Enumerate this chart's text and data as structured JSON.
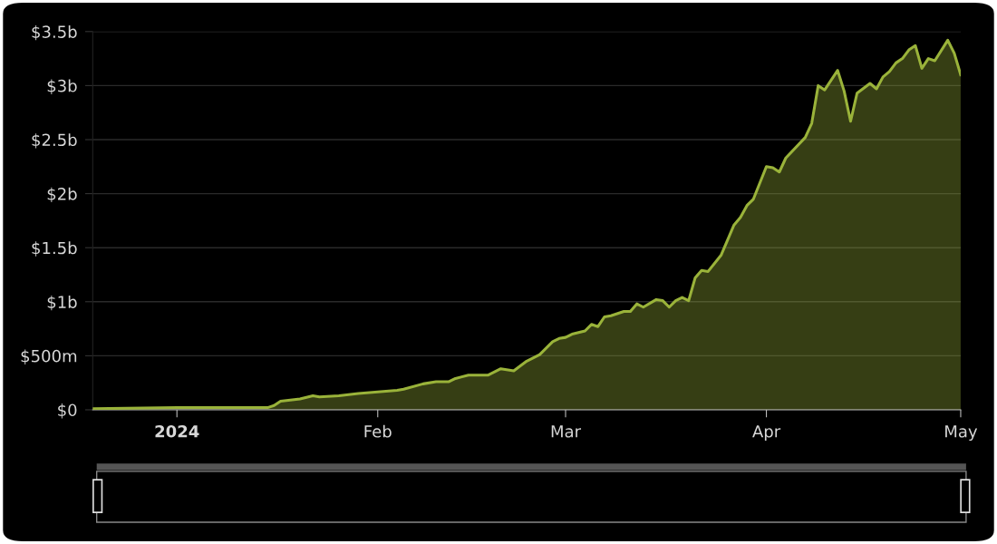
{
  "chart_data": {
    "type": "area",
    "x": [
      "2023-12-19",
      "2024-01-01",
      "2024-01-15",
      "2024-01-16",
      "2024-01-17",
      "2024-01-20",
      "2024-01-22",
      "2024-01-23",
      "2024-01-26",
      "2024-01-29",
      "2024-02-04",
      "2024-02-05",
      "2024-02-08",
      "2024-02-10",
      "2024-02-12",
      "2024-02-13",
      "2024-02-15",
      "2024-02-18",
      "2024-02-20",
      "2024-02-22",
      "2024-02-24",
      "2024-02-26",
      "2024-02-28",
      "2024-02-29",
      "2024-03-01",
      "2024-03-02",
      "2024-03-04",
      "2024-03-05",
      "2024-03-06",
      "2024-03-07",
      "2024-03-08",
      "2024-03-10",
      "2024-03-11",
      "2024-03-12",
      "2024-03-13",
      "2024-03-15",
      "2024-03-16",
      "2024-03-17",
      "2024-03-18",
      "2024-03-19",
      "2024-03-20",
      "2024-03-21",
      "2024-03-22",
      "2024-03-23",
      "2024-03-25",
      "2024-03-27",
      "2024-03-28",
      "2024-03-29",
      "2024-03-30",
      "2024-04-01",
      "2024-04-02",
      "2024-04-03",
      "2024-04-04",
      "2024-04-07",
      "2024-04-08",
      "2024-04-09",
      "2024-04-10",
      "2024-04-12",
      "2024-04-13",
      "2024-04-14",
      "2024-04-15",
      "2024-04-17",
      "2024-04-18",
      "2024-04-19",
      "2024-04-20",
      "2024-04-21",
      "2024-04-22",
      "2024-04-23",
      "2024-04-24",
      "2024-04-25",
      "2024-04-26",
      "2024-04-27",
      "2024-04-29",
      "2024-04-30",
      "2024-05-01"
    ],
    "series": [
      {
        "color": "#9ab33a",
        "values": [
          10000000,
          20000000,
          20000000,
          40000000,
          80000000,
          100000000,
          130000000,
          120000000,
          130000000,
          150000000,
          180000000,
          190000000,
          240000000,
          260000000,
          260000000,
          290000000,
          320000000,
          320000000,
          380000000,
          360000000,
          450000000,
          510000000,
          630000000,
          660000000,
          670000000,
          700000000,
          730000000,
          790000000,
          770000000,
          860000000,
          870000000,
          910000000,
          910000000,
          980000000,
          950000000,
          1020000000,
          1010000000,
          950000000,
          1010000000,
          1040000000,
          1010000000,
          1220000000,
          1290000000,
          1280000000,
          1430000000,
          1710000000,
          1780000000,
          1890000000,
          1950000000,
          2250000000,
          2240000000,
          2200000000,
          2330000000,
          2520000000,
          2650000000,
          3000000000,
          2960000000,
          3140000000,
          2950000000,
          2670000000,
          2930000000,
          3020000000,
          2970000000,
          3080000000,
          3130000000,
          3210000000,
          3250000000,
          3330000000,
          3370000000,
          3160000000,
          3250000000,
          3230000000,
          3420000000,
          3300000000,
          3100000000
        ]
      }
    ],
    "xlim": [
      "2023-12-19",
      "2024-05-01"
    ],
    "xticks": [
      {
        "value": "2024-01-01",
        "label": "2024"
      },
      {
        "value": "2024-02-01",
        "label": "Feb"
      },
      {
        "value": "2024-03-01",
        "label": "Mar"
      },
      {
        "value": "2024-04-01",
        "label": "Apr"
      },
      {
        "value": "2024-05-01",
        "label": "May"
      }
    ],
    "ylim": [
      0,
      3500000000
    ],
    "yticks": [
      {
        "value": 0,
        "label": "$0"
      },
      {
        "value": 500000000,
        "label": "$500m"
      },
      {
        "value": 1000000000,
        "label": "$1b"
      },
      {
        "value": 1500000000,
        "label": "$1.5b"
      },
      {
        "value": 2000000000,
        "label": "$2b"
      },
      {
        "value": 2500000000,
        "label": "$2.5b"
      },
      {
        "value": 3000000000,
        "label": "$3b"
      },
      {
        "value": 3500000000,
        "label": "$3.5b"
      }
    ],
    "grid": "y",
    "legend": false
  }
}
